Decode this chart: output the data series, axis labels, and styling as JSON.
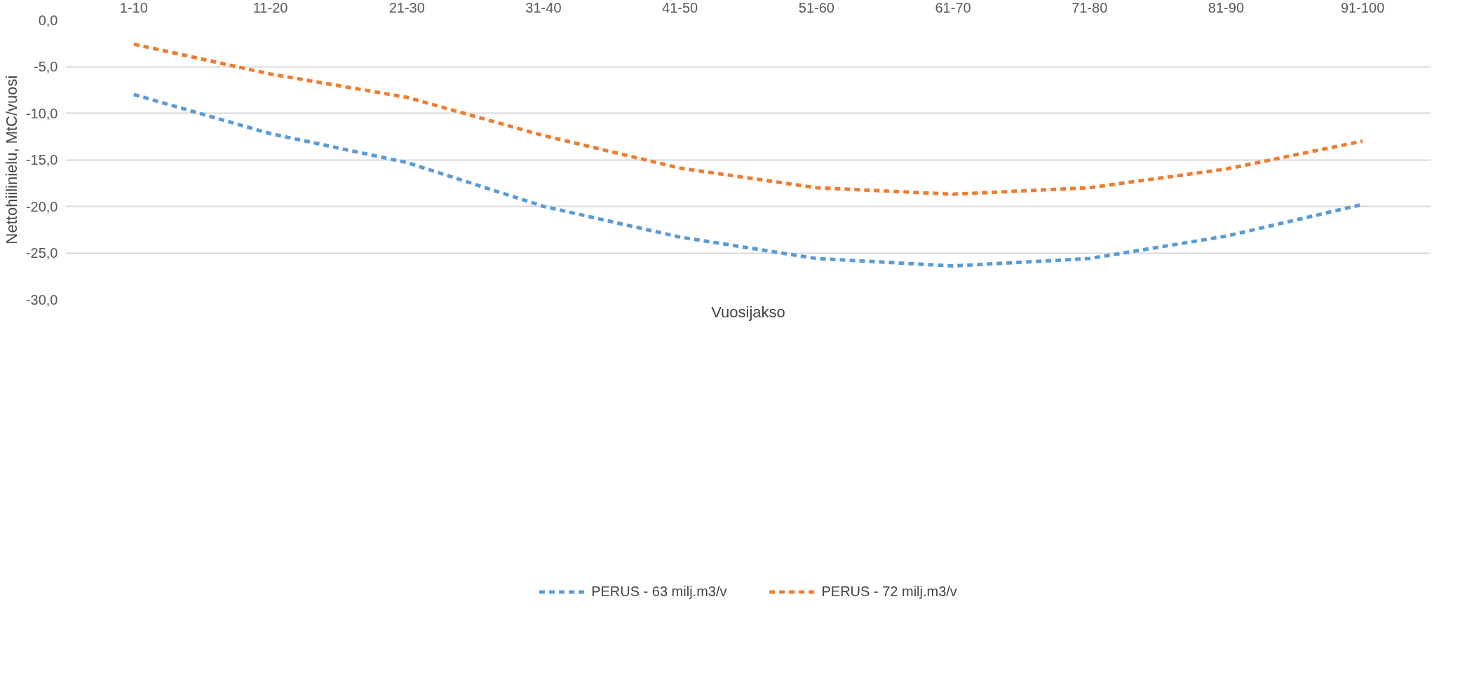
{
  "chart_data": {
    "type": "line",
    "xlabel": "Vuosijakso",
    "ylabel": "Nettohiilinielu, MtC/vuosi",
    "categories": [
      "1-10",
      "11-20",
      "21-30",
      "31-40",
      "41-50",
      "51-60",
      "61-70",
      "71-80",
      "81-90",
      "91-100"
    ],
    "series": [
      {
        "name": "PERUS - 63 milj.m3/v",
        "color": "#5b9bd5",
        "values": [
          -8.0,
          -12.2,
          -15.3,
          -20.0,
          -23.3,
          -25.6,
          -26.4,
          -25.6,
          -23.2,
          -19.8
        ]
      },
      {
        "name": "PERUS - 72 milj.m3/v",
        "color": "#ed7d31",
        "values": [
          -2.6,
          -5.8,
          -8.3,
          -12.4,
          -15.9,
          -18.0,
          -18.7,
          -18.0,
          -16.0,
          -13.0
        ]
      }
    ],
    "ylim": [
      -30,
      0
    ],
    "yticks": [
      {
        "value": 0,
        "label": "0,0"
      },
      {
        "value": -5,
        "label": "-5,0"
      },
      {
        "value": -10,
        "label": "-10,0"
      },
      {
        "value": -15,
        "label": "-15,0"
      },
      {
        "value": -20,
        "label": "-20,0"
      },
      {
        "value": -25,
        "label": "-25,0"
      },
      {
        "value": -30,
        "label": "-30,0"
      }
    ],
    "grid": "y",
    "legend": "bottom",
    "line_style": "dashed"
  }
}
